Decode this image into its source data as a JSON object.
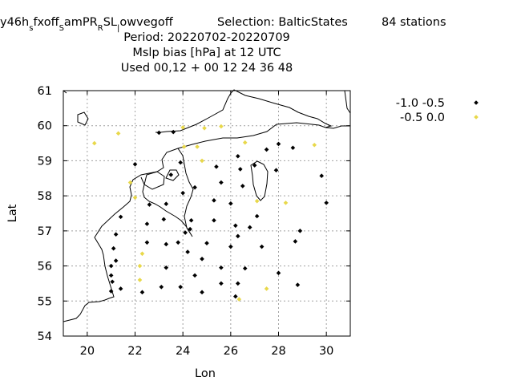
{
  "header": {
    "line1_parts": [
      {
        "text": "y46h",
        "sub": false
      },
      {
        "text": "s",
        "sub": true
      },
      {
        "text": "fxoff",
        "sub": false
      },
      {
        "text": "S",
        "sub": true
      },
      {
        "text": "amPR",
        "sub": false
      },
      {
        "text": "R",
        "sub": true
      },
      {
        "text": "SL",
        "sub": false
      },
      {
        "text": "|",
        "sub": true
      },
      {
        "text": "owvegoff",
        "sub": false
      }
    ],
    "selection": "Selection: BalticStates",
    "stations": "84 stations",
    "period": "Period: 20220702-20220709",
    "param": "Mslp bias [hPa] at  12 UTC",
    "used": "Used  00,12  + 00 12 24 36 48"
  },
  "chart_data": {
    "type": "scatter",
    "xlabel": "Lon",
    "ylabel": "Lat",
    "xlim": [
      19,
      31
    ],
    "ylim": [
      54,
      61
    ],
    "xticks": [
      20,
      22,
      24,
      26,
      28,
      30
    ],
    "yticks": [
      54,
      55,
      56,
      57,
      58,
      59,
      60,
      61
    ],
    "grid": true,
    "legend_position": "top-right, outside plot",
    "series": [
      {
        "name": "-1.0 -0.5",
        "color": "#000000",
        "points": [
          [
            23.0,
            59.8
          ],
          [
            23.6,
            59.82
          ],
          [
            28.0,
            59.48
          ],
          [
            28.6,
            59.37
          ],
          [
            27.5,
            59.32
          ],
          [
            26.3,
            59.13
          ],
          [
            22.0,
            58.9
          ],
          [
            23.9,
            58.95
          ],
          [
            25.4,
            58.83
          ],
          [
            26.4,
            58.76
          ],
          [
            27.0,
            58.87
          ],
          [
            27.9,
            58.73
          ],
          [
            23.5,
            58.6
          ],
          [
            24.5,
            58.24
          ],
          [
            25.6,
            58.38
          ],
          [
            26.5,
            58.28
          ],
          [
            29.8,
            58.57
          ],
          [
            24.0,
            58.08
          ],
          [
            23.3,
            57.77
          ],
          [
            22.6,
            57.75
          ],
          [
            25.3,
            57.87
          ],
          [
            26.0,
            57.78
          ],
          [
            30.0,
            57.8
          ],
          [
            21.4,
            57.4
          ],
          [
            23.2,
            57.33
          ],
          [
            24.35,
            57.3
          ],
          [
            25.3,
            57.3
          ],
          [
            26.8,
            57.1
          ],
          [
            27.1,
            57.42
          ],
          [
            24.3,
            57.05
          ],
          [
            22.5,
            57.2
          ],
          [
            26.2,
            57.15
          ],
          [
            28.9,
            57.0
          ],
          [
            21.2,
            56.9
          ],
          [
            24.1,
            56.95
          ],
          [
            26.3,
            56.85
          ],
          [
            28.7,
            56.7
          ],
          [
            22.5,
            56.67
          ],
          [
            23.3,
            56.62
          ],
          [
            23.8,
            56.67
          ],
          [
            25.0,
            56.65
          ],
          [
            21.1,
            56.5
          ],
          [
            24.2,
            56.4
          ],
          [
            26.0,
            56.55
          ],
          [
            27.3,
            56.55
          ],
          [
            21.2,
            56.15
          ],
          [
            24.8,
            56.2
          ],
          [
            21.0,
            56.0
          ],
          [
            23.3,
            55.95
          ],
          [
            25.6,
            55.95
          ],
          [
            26.6,
            55.93
          ],
          [
            28.0,
            55.8
          ],
          [
            21.0,
            55.73
          ],
          [
            24.5,
            55.73
          ],
          [
            21.05,
            55.55
          ],
          [
            25.6,
            55.5
          ],
          [
            26.3,
            55.5
          ],
          [
            28.8,
            55.46
          ],
          [
            21.4,
            55.35
          ],
          [
            23.1,
            55.4
          ],
          [
            23.9,
            55.4
          ],
          [
            21.0,
            55.28
          ],
          [
            22.3,
            55.25
          ],
          [
            24.8,
            55.25
          ],
          [
            26.2,
            55.13
          ]
        ]
      },
      {
        "name": "-0.5 0.0",
        "color": "#e8d84a",
        "points": [
          [
            20.3,
            59.5
          ],
          [
            21.3,
            59.78
          ],
          [
            24.0,
            59.95
          ],
          [
            24.9,
            59.93
          ],
          [
            25.6,
            59.98
          ],
          [
            26.6,
            59.52
          ],
          [
            29.5,
            59.45
          ],
          [
            24.05,
            59.4
          ],
          [
            24.6,
            59.4
          ],
          [
            24.8,
            59.0
          ],
          [
            21.8,
            58.38
          ],
          [
            22.0,
            57.95
          ],
          [
            27.1,
            57.85
          ],
          [
            28.3,
            57.8
          ],
          [
            22.3,
            56.35
          ],
          [
            22.2,
            56.0
          ],
          [
            22.2,
            55.6
          ],
          [
            27.5,
            55.35
          ],
          [
            26.35,
            55.05
          ]
        ]
      }
    ]
  }
}
